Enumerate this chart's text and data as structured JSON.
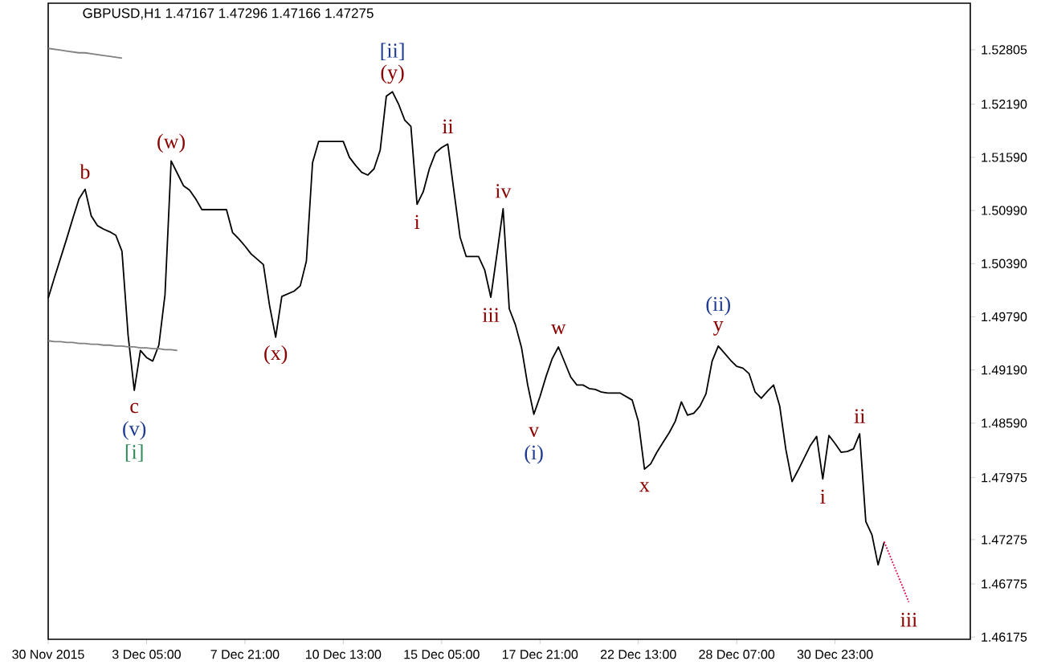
{
  "chart_data": {
    "type": "line",
    "title": "GBPUSD,H1  1.47167 1.47296 1.47166 1.47275",
    "categories": [
      "30 Nov 2015",
      null,
      null,
      null,
      null,
      null,
      null,
      null,
      null,
      null,
      null,
      null,
      null,
      null,
      null,
      null,
      "3 Dec 05:00",
      null,
      null,
      null,
      null,
      null,
      null,
      null,
      null,
      null,
      null,
      null,
      null,
      null,
      null,
      null,
      "7 Dec 21:00",
      null,
      null,
      null,
      null,
      null,
      null,
      null,
      null,
      null,
      null,
      null,
      null,
      null,
      null,
      null,
      "10 Dec 13:00",
      null,
      null,
      null,
      null,
      null,
      null,
      null,
      null,
      null,
      null,
      null,
      null,
      null,
      null,
      null,
      "15 Dec 05:00",
      null,
      null,
      null,
      null,
      null,
      null,
      null,
      null,
      null,
      null,
      null,
      null,
      null,
      null,
      null,
      "17 Dec 21:00",
      null,
      null,
      null,
      null,
      null,
      null,
      null,
      null,
      null,
      null,
      null,
      null,
      null,
      null,
      null,
      "22 Dec 13:00",
      null,
      null,
      null,
      null,
      null,
      null,
      null,
      null,
      null,
      null,
      null,
      null,
      null,
      null,
      null,
      "28 Dec 07:00",
      null,
      null,
      null,
      null,
      null,
      null,
      null,
      null,
      null,
      null,
      null,
      null,
      null,
      null,
      null,
      "30 Dec 23:00",
      null,
      null,
      null,
      null,
      null,
      null,
      null,
      null,
      null,
      null,
      null,
      null,
      null,
      null,
      null,
      null,
      null,
      null,
      null,
      null,
      null,
      null
    ],
    "ylim": [
      1.4615,
      1.5333
    ],
    "yticks": [
      {
        "value": 1.46175,
        "label": "1.46175"
      },
      {
        "value": 1.46775,
        "label": "1.46775"
      },
      {
        "value": 1.47275,
        "label": "1.47275"
      },
      {
        "value": 1.47975,
        "label": "1.47975"
      },
      {
        "value": 1.4859,
        "label": "1.48590"
      },
      {
        "value": 1.4919,
        "label": "1.49190"
      },
      {
        "value": 1.4979,
        "label": "1.49790"
      },
      {
        "value": 1.5039,
        "label": "1.50390"
      },
      {
        "value": 1.5099,
        "label": "1.50990"
      },
      {
        "value": 1.5159,
        "label": "1.51590"
      },
      {
        "value": 1.5219,
        "label": "1.52190"
      },
      {
        "value": 1.52805,
        "label": "1.52805"
      }
    ],
    "series": [
      {
        "color": "#000000",
        "values": [
          1.5,
          1.5023,
          1.5045,
          1.5067,
          1.509,
          1.5112,
          1.5123,
          1.5093,
          1.5082,
          1.5078,
          1.5075,
          1.5071,
          1.5053,
          1.4958,
          1.4896,
          1.4941,
          1.4933,
          1.4929,
          1.4947,
          1.5004,
          1.5155,
          1.5141,
          1.5127,
          1.5122,
          1.5112,
          1.51,
          1.51,
          1.51,
          1.51,
          1.51,
          1.5074,
          1.5067,
          1.5059,
          1.505,
          1.5044,
          1.5038,
          1.4992,
          1.4956,
          1.5002,
          1.5005,
          1.5008,
          1.5014,
          1.5042,
          1.5153,
          1.5177,
          1.5177,
          1.5177,
          1.5177,
          1.5177,
          1.5159,
          1.515,
          1.5142,
          1.5139,
          1.5146,
          1.5167,
          1.5228,
          1.5233,
          1.5219,
          1.5201,
          1.5194,
          1.5106,
          1.512,
          1.5146,
          1.5164,
          1.517,
          1.5174,
          1.5121,
          1.5069,
          1.5047,
          1.5047,
          1.5047,
          1.5032,
          1.5001,
          1.505,
          1.5101,
          1.4988,
          1.497,
          1.4944,
          1.4902,
          1.4869,
          1.4889,
          1.4912,
          1.4932,
          1.4945,
          1.4928,
          1.4911,
          1.4902,
          1.4902,
          1.4898,
          1.4897,
          1.4894,
          1.4893,
          1.4893,
          1.4893,
          1.4889,
          1.4885,
          1.4861,
          1.4807,
          1.4813,
          1.4826,
          1.4837,
          1.4848,
          1.4861,
          1.4883,
          1.4868,
          1.487,
          1.4878,
          1.4892,
          1.4929,
          1.4946,
          1.4938,
          1.493,
          1.4923,
          1.4921,
          1.4915,
          1.4894,
          1.4887,
          1.4895,
          1.4902,
          1.4878,
          1.4829,
          1.4793,
          1.4806,
          1.482,
          1.4834,
          1.4844,
          1.4796,
          1.4845,
          1.4836,
          1.4826,
          1.4827,
          1.483,
          1.4847,
          1.4748,
          1.4733,
          1.4699,
          1.4725,
          null,
          null,
          null,
          null,
          null,
          null,
          null,
          null,
          null,
          null,
          null,
          null,
          null,
          null
        ]
      },
      {
        "color": "#808080",
        "values": [
          1.5282,
          1.5281,
          1.528,
          1.5279,
          1.5278,
          1.5277,
          1.5277,
          1.5276,
          1.5275,
          1.5274,
          1.5273,
          1.5272,
          1.5271,
          null,
          null,
          null,
          null,
          null,
          null,
          null,
          null,
          null,
          null,
          null,
          null,
          null,
          null,
          null,
          null,
          null,
          null,
          null,
          null,
          null,
          null,
          null,
          null,
          null,
          null,
          null,
          null,
          null,
          null,
          null,
          null,
          null,
          null,
          null,
          null,
          null,
          null,
          null,
          null,
          null,
          null,
          null,
          null,
          null,
          null,
          null,
          null,
          null,
          null,
          null,
          null,
          null,
          null,
          null,
          null,
          null,
          null,
          null,
          null,
          null,
          null,
          null,
          null,
          null,
          null,
          null,
          null,
          null,
          null,
          null,
          null,
          null,
          null,
          null,
          null,
          null,
          null,
          null,
          null,
          null,
          null,
          null,
          null,
          null,
          null,
          null,
          null,
          null,
          null,
          null,
          null,
          null,
          null,
          null,
          null,
          null,
          null,
          null,
          null,
          null,
          null,
          null,
          null,
          null,
          null,
          null,
          null,
          null,
          null,
          null,
          null,
          null,
          null,
          null,
          null,
          null,
          null,
          null,
          null,
          null,
          null,
          null,
          null,
          null,
          null,
          null,
          null,
          null,
          null,
          null,
          null,
          null,
          null,
          null,
          null,
          null,
          null
        ]
      },
      {
        "color": "#808080",
        "values": [
          1.4952,
          1.4951,
          1.4951,
          1.495,
          1.495,
          1.4949,
          1.4949,
          1.4948,
          1.4948,
          1.4947,
          1.4947,
          1.4946,
          1.4946,
          1.4945,
          1.4945,
          1.4944,
          1.4944,
          1.4943,
          1.4943,
          1.4942,
          1.4942,
          1.4941,
          null,
          null,
          null,
          null,
          null,
          null,
          null,
          null,
          null,
          null,
          null,
          null,
          null,
          null,
          null,
          null,
          null,
          null,
          null,
          null,
          null,
          null,
          null,
          null,
          null,
          null,
          null,
          null,
          null,
          null,
          null,
          null,
          null,
          null,
          null,
          null,
          null,
          null,
          null,
          null,
          null,
          null,
          null,
          null,
          null,
          null,
          null,
          null,
          null,
          null,
          null,
          null,
          null,
          null,
          null,
          null,
          null,
          null,
          null,
          null,
          null,
          null,
          null,
          null,
          null,
          null,
          null,
          null,
          null,
          null,
          null,
          null,
          null,
          null,
          null,
          null,
          null,
          null,
          null,
          null,
          null,
          null,
          null,
          null,
          null,
          null,
          null,
          null,
          null,
          null,
          null,
          null,
          null,
          null,
          null,
          null,
          null,
          null,
          null,
          null,
          null,
          null,
          null,
          null,
          null,
          null,
          null,
          null,
          null,
          null,
          null,
          null,
          null,
          null,
          null,
          null,
          null,
          null,
          null,
          null,
          null,
          null,
          null,
          null,
          null,
          null,
          null,
          null,
          null
        ]
      },
      {
        "color": "#e0004a",
        "line_style": "dotted",
        "values": [
          null,
          null,
          null,
          null,
          null,
          null,
          null,
          null,
          null,
          null,
          null,
          null,
          null,
          null,
          null,
          null,
          null,
          null,
          null,
          null,
          null,
          null,
          null,
          null,
          null,
          null,
          null,
          null,
          null,
          null,
          null,
          null,
          null,
          null,
          null,
          null,
          null,
          null,
          null,
          null,
          null,
          null,
          null,
          null,
          null,
          null,
          null,
          null,
          null,
          null,
          null,
          null,
          null,
          null,
          null,
          null,
          null,
          null,
          null,
          null,
          null,
          null,
          null,
          null,
          null,
          null,
          null,
          null,
          null,
          null,
          null,
          null,
          null,
          null,
          null,
          null,
          null,
          null,
          null,
          null,
          null,
          null,
          null,
          null,
          null,
          null,
          null,
          null,
          null,
          null,
          null,
          null,
          null,
          null,
          null,
          null,
          null,
          null,
          null,
          null,
          null,
          null,
          null,
          null,
          null,
          null,
          null,
          null,
          null,
          null,
          null,
          null,
          null,
          null,
          null,
          null,
          null,
          null,
          null,
          null,
          null,
          null,
          null,
          null,
          null,
          null,
          null,
          null,
          null,
          null,
          null,
          null,
          null,
          null,
          null,
          null,
          1.4725,
          1.4708,
          1.4691,
          1.4674,
          1.4657,
          null,
          null,
          null,
          null,
          null,
          null,
          null,
          null,
          null,
          null
        ]
      }
    ],
    "annotations": [
      {
        "text": "b",
        "y": 1.5123
      },
      {
        "text": "c",
        "y": 1.4896
      },
      {
        "text": "(v)",
        "y": 1.4896
      },
      {
        "text": "[i]",
        "y": 1.4896
      },
      {
        "text": "(w)",
        "y": 1.5155
      },
      {
        "text": "(x)",
        "y": 1.4956
      },
      {
        "text": "(y)",
        "y": 1.5233
      },
      {
        "text": "[ii]",
        "y": 1.5233
      },
      {
        "text": "i",
        "y": 1.5106
      },
      {
        "text": "ii",
        "y": 1.5174
      },
      {
        "text": "iii",
        "y": 1.5001
      },
      {
        "text": "iv",
        "y": 1.5101
      },
      {
        "text": "v",
        "y": 1.4869
      },
      {
        "text": "(i)",
        "y": 1.4869
      },
      {
        "text": "w",
        "y": 1.4945
      },
      {
        "text": "x",
        "y": 1.4807
      },
      {
        "text": "y",
        "y": 1.4946
      },
      {
        "text": "(ii)",
        "y": 1.4946
      },
      {
        "text": "i",
        "y": 1.4796
      },
      {
        "text": "ii",
        "y": 1.4847
      },
      {
        "text": "iii",
        "y": 1.4657
      }
    ]
  }
}
